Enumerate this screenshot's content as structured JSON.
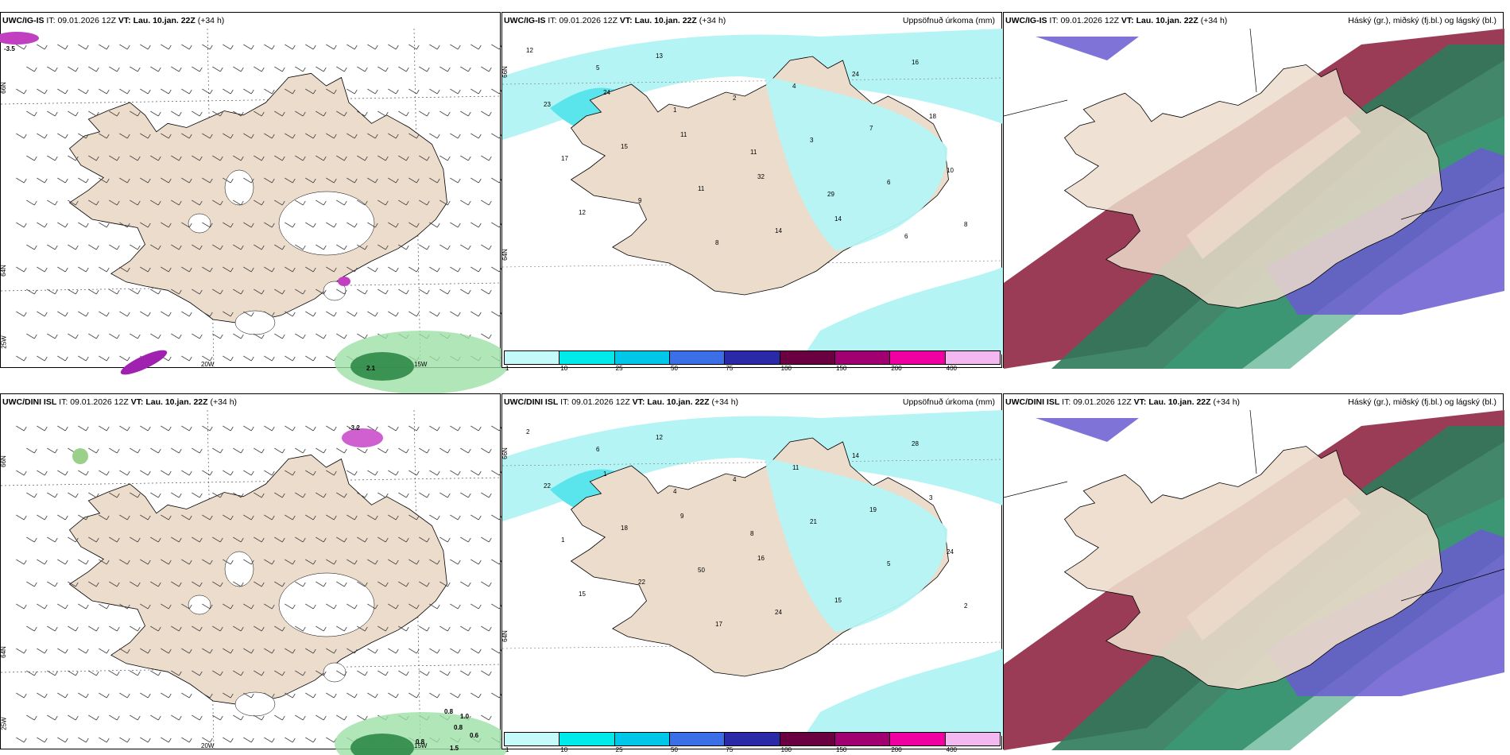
{
  "panels": [
    {
      "model": "UWC/IG-IS",
      "it_label": "IT:",
      "it": "09.01.2026 12Z",
      "vt_label": "VT:",
      "vt": "Lau. 10.jan. 22Z",
      "lead": "(+34 h)",
      "lat_labels": [
        "66N",
        "64N"
      ],
      "lon_labels": [
        "20W",
        "15W",
        "25W"
      ],
      "values": [
        "-3.5",
        "2.1"
      ]
    },
    {
      "model": "UWC/IG-IS",
      "it_label": "IT:",
      "it": "09.01.2026 12Z",
      "vt_label": "VT:",
      "vt": "Lau. 10.jan. 22Z",
      "lead": "(+34 h)",
      "right_title": "Uppsöfnuð úrkoma (mm)",
      "lat_labels": [
        "66N",
        "64N"
      ],
      "values": [
        "12",
        "24",
        "11",
        "32",
        "14",
        "16",
        "23",
        "15",
        "11",
        "14",
        "24",
        "18",
        "17",
        "9",
        "8",
        "4",
        "7",
        "10",
        "12",
        "13",
        "2",
        "3",
        "6",
        "8",
        "5",
        "1",
        "11",
        "29",
        "6"
      ]
    },
    {
      "model": "UWC/IG-IS",
      "it_label": "IT:",
      "it": "09.01.2026 12Z",
      "vt_label": "VT:",
      "vt": "Lau. 10.jan. 22Z",
      "lead": "(+34 h)",
      "right_title": "Háský (gr.), miðský (fj.bl.) og lágský (bl.)"
    },
    {
      "model": "UWC/DINI ISL",
      "it_label": "IT:",
      "it": "09.01.2026 12Z",
      "vt_label": "VT:",
      "vt": "Lau. 10.jan. 22Z",
      "lead": "(+34 h)",
      "lat_labels": [
        "66N",
        "64N"
      ],
      "lon_labels": [
        "20W",
        "15W",
        "25W"
      ],
      "values": [
        "-3.2",
        "0.8",
        "1.0",
        "0.8",
        "0.6",
        "0.8",
        "1.5"
      ]
    },
    {
      "model": "UWC/DINI ISL",
      "it_label": "IT:",
      "it": "09.01.2026 12Z",
      "vt_label": "VT:",
      "vt": "Lau. 10.jan. 22Z",
      "lead": "(+34 h)",
      "right_title": "Uppsöfnuð úrkoma (mm)",
      "lat_labels": [
        "66N",
        "64N"
      ],
      "values": [
        "2",
        "1",
        "9",
        "16",
        "15",
        "28",
        "22",
        "18",
        "50",
        "24",
        "14",
        "3",
        "1",
        "22",
        "17",
        "11",
        "19",
        "24",
        "15",
        "12",
        "4",
        "21",
        "5",
        "2",
        "6",
        "4",
        "8"
      ]
    },
    {
      "model": "UWC/DINI ISL",
      "it_label": "IT:",
      "it": "09.01.2026 12Z",
      "vt_label": "VT:",
      "vt": "Lau. 10.jan. 22Z",
      "lead": "(+34 h)",
      "right_title": "Háský (gr.), miðský (fj.bl.) og lágský (bl.)"
    }
  ],
  "colorbar": {
    "labels": [
      "1",
      "10",
      "25",
      "50",
      "75",
      "100",
      "150",
      "200",
      "400"
    ],
    "colors": [
      "#c4fafa",
      "#00eaea",
      "#00c6e8",
      "#3a6fe8",
      "#2a2aa8",
      "#6a0040",
      "#a00070",
      "#f000a0",
      "#f4b8f0"
    ]
  },
  "colors": {
    "land": "#ecdccb",
    "snow": "#ffffff",
    "precip_light": "#b4f4f4",
    "precip_mid": "#5ae4ec",
    "high_cloud": "#2e7a5a",
    "mid_cloud": "#6a5ad0",
    "low_cloud": "#8a1a3a"
  }
}
